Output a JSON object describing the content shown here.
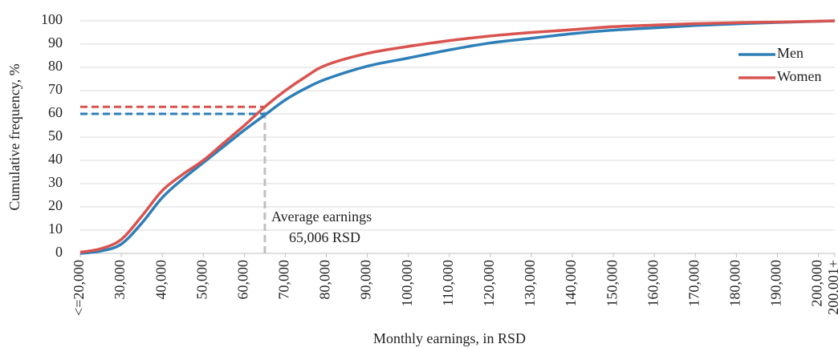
{
  "chart_data": {
    "type": "line",
    "x_label": "Monthly earnings, in RSD",
    "y_label": "Cumulative frequency, %",
    "xlim": [
      20000,
      204000
    ],
    "ylim": [
      0,
      100
    ],
    "yticks": [
      0,
      10,
      20,
      30,
      40,
      50,
      60,
      70,
      80,
      90,
      100
    ],
    "xticks": [
      {
        "value": 20000,
        "label": "<=20,000"
      },
      {
        "value": 30000,
        "label": "30,000"
      },
      {
        "value": 40000,
        "label": "40,000"
      },
      {
        "value": 50000,
        "label": "50,000"
      },
      {
        "value": 60000,
        "label": "60,000"
      },
      {
        "value": 70000,
        "label": "70,000"
      },
      {
        "value": 80000,
        "label": "80,000"
      },
      {
        "value": 90000,
        "label": "90,000"
      },
      {
        "value": 100000,
        "label": "100,000"
      },
      {
        "value": 110000,
        "label": "110,000"
      },
      {
        "value": 120000,
        "label": "120,000"
      },
      {
        "value": 130000,
        "label": "130,000"
      },
      {
        "value": 140000,
        "label": "140,000"
      },
      {
        "value": 150000,
        "label": "150,000"
      },
      {
        "value": 160000,
        "label": "160,000"
      },
      {
        "value": 170000,
        "label": "170,000"
      },
      {
        "value": 180000,
        "label": "180,000"
      },
      {
        "value": 190000,
        "label": "190,000"
      },
      {
        "value": 200000,
        "label": "200,000"
      },
      {
        "value": 204000,
        "label": "200,001+"
      }
    ],
    "grid": true,
    "legend": "top-right",
    "x": [
      20000,
      25000,
      30000,
      35000,
      40000,
      45000,
      50000,
      55000,
      60000,
      65000,
      70000,
      75000,
      80000,
      90000,
      100000,
      110000,
      120000,
      130000,
      140000,
      150000,
      160000,
      170000,
      180000,
      190000,
      204000
    ],
    "series": [
      {
        "name": "Men",
        "color": "#2e7fb8",
        "average_y": 60,
        "values": [
          0,
          1,
          4,
          13,
          24,
          32,
          39,
          46,
          53,
          59.5,
          66,
          71,
          75,
          80.5,
          84,
          87.5,
          90.5,
          92.5,
          94.5,
          96,
          97,
          98,
          98.7,
          99.3,
          100
        ]
      },
      {
        "name": "Women",
        "color": "#d9534f",
        "average_y": 63,
        "values": [
          0.5,
          2,
          6,
          16,
          27,
          34,
          40,
          47.5,
          55,
          63,
          70,
          76,
          81,
          86,
          89,
          91.5,
          93.5,
          95,
          96.2,
          97.5,
          98.2,
          98.8,
          99.2,
          99.5,
          100
        ]
      }
    ],
    "average_x": 65006,
    "average_label": [
      "Average earnings",
      "65,006 RSD"
    ]
  }
}
